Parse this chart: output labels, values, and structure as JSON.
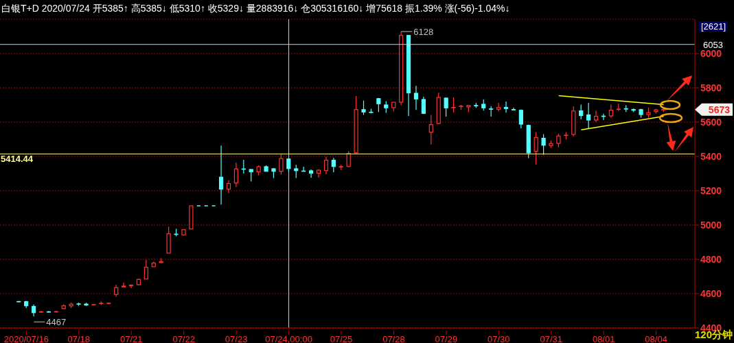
{
  "chart_data": {
    "type": "candlestick",
    "title": "白银T+D 2020/07/24 开5385↑ 高5385↓ 低5310↑ 收5329↓ 量2883916↓ 仓305316160↓ 增75618 振1.39% 涨(-56)-1.04%↓",
    "categories": [
      null,
      "2020/07/16",
      null,
      null,
      null,
      null,
      null,
      null,
      "07/18",
      null,
      null,
      null,
      null,
      null,
      null,
      "07/21",
      null,
      null,
      null,
      null,
      null,
      null,
      "07/22",
      null,
      null,
      null,
      null,
      null,
      null,
      "07/23",
      null,
      null,
      null,
      null,
      null,
      null,
      "07/24,00:00",
      null,
      null,
      null,
      null,
      null,
      null,
      "07/25",
      null,
      null,
      null,
      null,
      null,
      null,
      "07/28",
      null,
      null,
      null,
      null,
      null,
      null,
      "07/29",
      null,
      null,
      null,
      null,
      null,
      null,
      "07/30",
      null,
      null,
      null,
      null,
      null,
      null,
      "07/31",
      null,
      null,
      null,
      null,
      null,
      null,
      "08/01",
      null,
      null,
      null,
      null,
      null,
      null,
      "08/04",
      null
    ],
    "ohlc": [
      [
        4554,
        4557,
        4550,
        4553
      ],
      [
        4553,
        4558,
        4516,
        4529
      ],
      [
        4525,
        4536,
        4467,
        4489
      ],
      [
        4493,
        4500,
        4487,
        4494
      ],
      [
        4494,
        4499,
        4489,
        4493
      ],
      [
        4493,
        4500,
        4490,
        4495
      ],
      [
        4513,
        4538,
        4509,
        4529
      ],
      [
        4529,
        4547,
        4516,
        4539
      ],
      [
        4540,
        4547,
        4529,
        4539
      ],
      [
        4539,
        4547,
        4529,
        4533
      ],
      [
        4535,
        4538,
        4534,
        4536
      ],
      [
        4543,
        4555,
        4533,
        4544
      ],
      [
        4542,
        4548,
        4538,
        4544
      ],
      [
        4595,
        4652,
        4582,
        4635
      ],
      [
        4639,
        4664,
        4639,
        4644
      ],
      [
        4645,
        4650,
        4632,
        4650
      ],
      [
        4652,
        4688,
        4648,
        4683
      ],
      [
        4685,
        4797,
        4685,
        4754
      ],
      [
        4757,
        4787,
        4757,
        4778
      ],
      [
        4781,
        4806,
        4777,
        4787
      ],
      [
        4836,
        4990,
        4836,
        4949
      ],
      [
        4947,
        4978,
        4934,
        4945
      ],
      [
        4942,
        4973,
        4938,
        4973
      ],
      [
        4977,
        5112,
        4977,
        5112
      ],
      [
        5112,
        5112,
        5112,
        5112
      ],
      [
        5112,
        5112,
        5112,
        5112
      ],
      [
        5112,
        5112,
        5112,
        5112
      ],
      [
        5279,
        5463,
        5119,
        5209
      ],
      [
        5209,
        5261,
        5186,
        5242
      ],
      [
        5245,
        5364,
        5221,
        5327
      ],
      [
        5327,
        5380,
        5300,
        5326
      ],
      [
        5324,
        5325,
        5254,
        5310
      ],
      [
        5310,
        5348,
        5290,
        5340
      ],
      [
        5340,
        5348,
        5313,
        5313
      ],
      [
        5328,
        5332,
        5274,
        5313
      ],
      [
        5313,
        5414,
        5294,
        5388
      ],
      [
        5385,
        5385,
        5310,
        5329
      ],
      [
        5328,
        5351,
        5274,
        5317
      ],
      [
        5315,
        5340,
        5313,
        5314
      ],
      [
        5316,
        5324,
        5276,
        5302
      ],
      [
        5302,
        5324,
        5276,
        5320
      ],
      [
        5317,
        5398,
        5296,
        5378
      ],
      [
        5378,
        5392,
        5308,
        5341
      ],
      [
        5338,
        5351,
        5321,
        5340
      ],
      [
        5341,
        5430,
        5341,
        5417
      ],
      [
        5421,
        5752,
        5417,
        5673
      ],
      [
        5673,
        5726,
        5642,
        5659
      ],
      [
        5658,
        5678,
        5651,
        5656
      ],
      [
        5737,
        5741,
        5659,
        5707
      ],
      [
        5700,
        5722,
        5654,
        5683
      ],
      [
        5684,
        5716,
        5663,
        5716
      ],
      [
        5716,
        6128,
        5699,
        6106
      ],
      [
        6106,
        6106,
        5636,
        5771
      ],
      [
        5768,
        5812,
        5671,
        5735
      ],
      [
        5732,
        5748,
        5647,
        5651
      ],
      [
        5541,
        5642,
        5469,
        5585
      ],
      [
        5592,
        5772,
        5588,
        5744
      ],
      [
        5740,
        5744,
        5632,
        5683
      ],
      [
        5685,
        5744,
        5655,
        5686
      ],
      [
        5692,
        5700,
        5671,
        5693
      ],
      [
        5689,
        5700,
        5659,
        5697
      ],
      [
        5697,
        5712,
        5683,
        5696
      ],
      [
        5704,
        5732,
        5667,
        5683
      ],
      [
        5677,
        5693,
        5632,
        5676
      ],
      [
        5675,
        5712,
        5663,
        5685
      ],
      [
        5686,
        5720,
        5655,
        5679
      ],
      [
        5673,
        5685,
        5671,
        5672
      ],
      [
        5669,
        5674,
        5564,
        5588
      ],
      [
        5581,
        5585,
        5390,
        5421
      ],
      [
        5430,
        5541,
        5353,
        5510
      ],
      [
        5506,
        5530,
        5409,
        5465
      ],
      [
        5463,
        5492,
        5450,
        5475
      ],
      [
        5476,
        5533,
        5453,
        5519
      ],
      [
        5522,
        5541,
        5499,
        5524
      ],
      [
        5528,
        5692,
        5516,
        5665
      ],
      [
        5666,
        5702,
        5616,
        5638
      ],
      [
        5642,
        5712,
        5563,
        5612
      ],
      [
        5612,
        5666,
        5600,
        5634
      ],
      [
        5635,
        5649,
        5612,
        5634
      ],
      [
        5636,
        5702,
        5626,
        5669
      ],
      [
        5674,
        5708,
        5665,
        5676
      ],
      [
        5678,
        5699,
        5659,
        5677
      ],
      [
        5674,
        5679,
        5659,
        5669
      ],
      [
        5673,
        5678,
        5626,
        5644
      ],
      [
        5644,
        5685,
        5626,
        5655
      ],
      [
        5661,
        5677,
        5650,
        5671
      ],
      [
        5672,
        5685,
        5659,
        5673
      ]
    ],
    "colors": [
      "#54ffff",
      "#54ffff",
      "#54ffff",
      "#ff3232",
      "#54ffff",
      "#ff3232",
      "#ff3232",
      "#ff3232",
      "#54ffff",
      "#54ffff",
      "#ff3232",
      "#ff3232",
      "#ff3232",
      "#ff3232",
      "#ff3232",
      "#ff3232",
      "#ff3232",
      "#ff3232",
      "#ff3232",
      "#ff3232",
      "#ff3232",
      "#54ffff",
      "#ff3232",
      "#ff3232",
      "#54ffff",
      "#54ffff",
      "#54ffff",
      "#54ffff",
      "#ff3232",
      "#ff3232",
      "#54ffff",
      "#54ffff",
      "#ff3232",
      "#54ffff",
      "#54ffff",
      "#ff3232",
      "#54ffff",
      "#54ffff",
      "#54ffff",
      "#54ffff",
      "#ff3232",
      "#ff3232",
      "#54ffff",
      "#ff3232",
      "#ff3232",
      "#ff3232",
      "#54ffff",
      "#54ffff",
      "#54ffff",
      "#54ffff",
      "#ff3232",
      "#ff3232",
      "#54ffff",
      "#54ffff",
      "#54ffff",
      "#ff3232",
      "#ff3232",
      "#54ffff",
      "#ff3232",
      "#ff3232",
      "#ff3232",
      "#54ffff",
      "#54ffff",
      "#54ffff",
      "#ff3232",
      "#54ffff",
      "#54ffff",
      "#54ffff",
      "#54ffff",
      "#ff3232",
      "#54ffff",
      "#ff3232",
      "#ff3232",
      "#ff3232",
      "#ff3232",
      "#54ffff",
      "#54ffff",
      "#ff3232",
      "#54ffff",
      "#ff3232",
      "#ff3232",
      "#54ffff",
      "#54ffff",
      "#54ffff",
      "#ff3232",
      "#ff3232",
      "#ff3232"
    ],
    "series": [
      {
        "type": "line",
        "color": "#ffff00",
        "values": [
          null,
          null,
          null,
          null,
          null,
          null,
          null,
          null,
          null,
          null,
          null,
          null,
          null,
          null,
          null,
          null,
          null,
          null,
          null,
          null,
          null,
          null,
          null,
          null,
          null,
          null,
          null,
          null,
          null,
          null,
          null,
          null,
          null,
          null,
          null,
          null,
          null,
          null,
          null,
          null,
          null,
          null,
          null,
          null,
          null,
          null,
          null,
          null,
          null,
          null,
          null,
          null,
          null,
          null,
          null,
          null,
          null,
          null,
          null,
          null,
          null,
          null,
          null,
          null,
          null,
          null,
          null,
          null,
          null,
          null,
          null,
          null,
          5754,
          null,
          null,
          null,
          null,
          null,
          null,
          null,
          null,
          null,
          null,
          null,
          null,
          null,
          5702
        ]
      },
      {
        "type": "line",
        "color": "#ffff00",
        "values": [
          null,
          null,
          null,
          null,
          null,
          null,
          null,
          null,
          null,
          null,
          null,
          null,
          null,
          null,
          null,
          null,
          null,
          null,
          null,
          null,
          null,
          null,
          null,
          null,
          null,
          null,
          null,
          null,
          null,
          null,
          null,
          null,
          null,
          null,
          null,
          null,
          null,
          null,
          null,
          null,
          null,
          null,
          null,
          null,
          null,
          null,
          null,
          null,
          null,
          null,
          null,
          null,
          null,
          null,
          null,
          null,
          null,
          null,
          null,
          null,
          null,
          null,
          null,
          null,
          null,
          null,
          null,
          null,
          null,
          null,
          null,
          null,
          null,
          null,
          null,
          5555,
          null,
          null,
          null,
          null,
          null,
          null,
          null,
          null,
          null,
          null,
          5634
        ]
      }
    ],
    "ylim": [
      4400,
      6200
    ],
    "yticks": [
      4400,
      4600,
      4800,
      5000,
      5200,
      5400,
      5600,
      5800,
      6000
    ],
    "grid": "y",
    "ref_lines": [
      {
        "axis": "y",
        "value": 5414.44,
        "label": "5414.44",
        "color": "#ffff80"
      },
      {
        "axis": "y",
        "value": 6053,
        "label": "6053",
        "color": "#d0d0d0"
      },
      {
        "axis": "x",
        "value": "07/24,00:00",
        "color": "#d0d0d0"
      }
    ],
    "annotations": [
      "6128",
      "4467",
      "5673",
      "[2621]",
      "120分钟"
    ]
  }
}
